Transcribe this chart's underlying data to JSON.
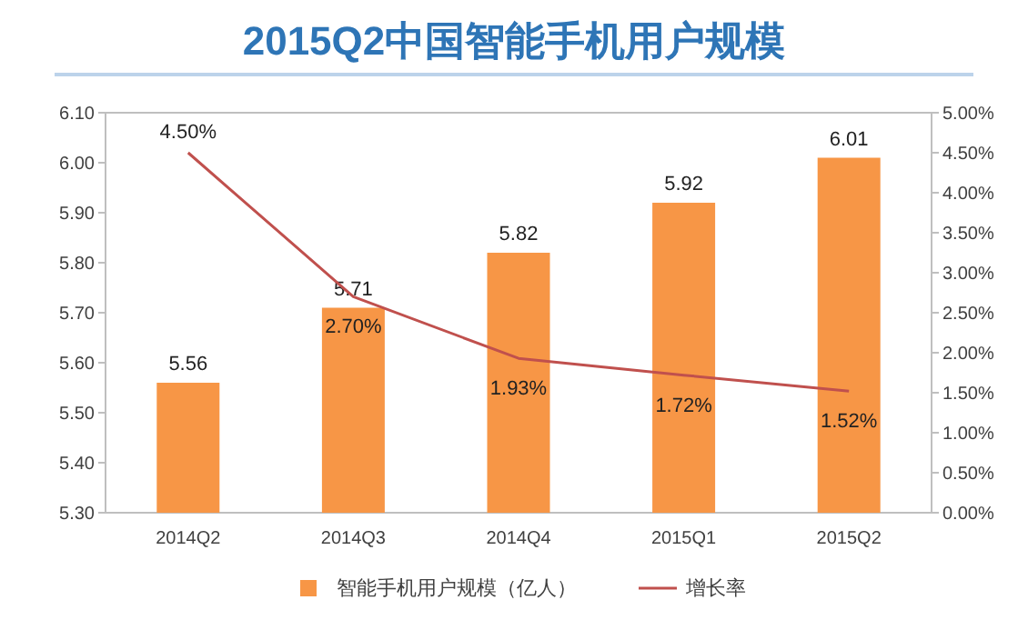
{
  "chart_data": {
    "type": "bar",
    "title": "2015Q2中国智能手机用户规模",
    "categories": [
      "2014Q2",
      "2014Q3",
      "2014Q4",
      "2015Q1",
      "2015Q2"
    ],
    "series": [
      {
        "name": "智能手机用户规模（亿人）",
        "color": "#f79646",
        "values": [
          5.56,
          5.71,
          5.82,
          5.92,
          6.01
        ],
        "value_labels": [
          "5.56",
          "5.71",
          "5.82",
          "5.92",
          "6.01"
        ]
      },
      {
        "name": "增长率",
        "type": "line",
        "axis": "y2",
        "color": "#c0504d",
        "values": [
          4.5,
          2.7,
          1.93,
          1.72,
          1.52
        ],
        "value_labels": [
          "4.50%",
          "2.70%",
          "1.93%",
          "1.72%",
          "1.52%"
        ]
      }
    ],
    "ylim": [
      5.3,
      6.1
    ],
    "yticks": [
      {
        "value": 5.3,
        "label": "5.30"
      },
      {
        "value": 5.4,
        "label": "5.40"
      },
      {
        "value": 5.5,
        "label": "5.50"
      },
      {
        "value": 5.6,
        "label": "5.60"
      },
      {
        "value": 5.7,
        "label": "5.70"
      },
      {
        "value": 5.8,
        "label": "5.80"
      },
      {
        "value": 5.9,
        "label": "5.90"
      },
      {
        "value": 6.0,
        "label": "6.00"
      },
      {
        "value": 6.1,
        "label": "6.10"
      }
    ],
    "y2lim": [
      0,
      5
    ],
    "y2ticks": [
      {
        "value": 0,
        "label": "0.00%"
      },
      {
        "value": 0.5,
        "label": "0.50%"
      },
      {
        "value": 1,
        "label": "1.00%"
      },
      {
        "value": 1.5,
        "label": "1.50%"
      },
      {
        "value": 2,
        "label": "2.00%"
      },
      {
        "value": 2.5,
        "label": "2.50%"
      },
      {
        "value": 3,
        "label": "3.00%"
      },
      {
        "value": 3.5,
        "label": "3.50%"
      },
      {
        "value": 4,
        "label": "4.00%"
      },
      {
        "value": 4.5,
        "label": "4.50%"
      },
      {
        "value": 5,
        "label": "5.00%"
      }
    ],
    "legend": "bottom"
  }
}
